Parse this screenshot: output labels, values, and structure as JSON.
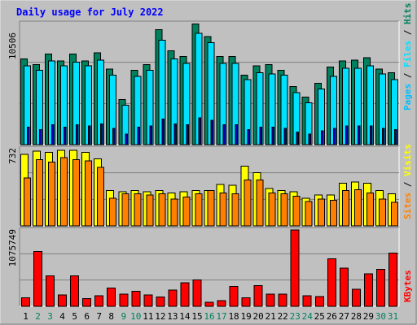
{
  "colors": {
    "background": "#c0c0c0",
    "frame": "#b0b0b0",
    "title": "#0000ff",
    "hits": "#00805c",
    "files": "#00e0ff",
    "pages": "#00c0ff",
    "visits": "#ffff00",
    "sites": "#ff8000",
    "kbytes": "#ff0000",
    "weekend_label": "#00805c",
    "weekday_label": "#000000"
  },
  "chart_data": [
    {
      "type": "bar",
      "title": "Daily usage for July 2022",
      "panel": "top",
      "ymax_label": "10506",
      "ylim": [
        0,
        10506
      ],
      "legend": [
        "Pages",
        "Files",
        "Hits"
      ],
      "categories": [
        "1",
        "2",
        "3",
        "4",
        "5",
        "6",
        "7",
        "8",
        "9",
        "10",
        "11",
        "12",
        "13",
        "14",
        "15",
        "16",
        "17",
        "18",
        "19",
        "20",
        "21",
        "22",
        "23",
        "24",
        "25",
        "26",
        "27",
        "28",
        "29",
        "30",
        "31"
      ],
      "series": [
        {
          "name": "Hits",
          "values": [
            7400,
            6900,
            7800,
            7200,
            7800,
            7200,
            7900,
            6500,
            3900,
            6400,
            6900,
            9900,
            8100,
            7600,
            10400,
            9300,
            7600,
            7600,
            6000,
            6800,
            6900,
            6400,
            5000,
            4100,
            5300,
            6700,
            7200,
            7300,
            7500,
            6500,
            6200
          ]
        },
        {
          "name": "Files",
          "values": [
            6800,
            6400,
            7200,
            6800,
            7100,
            6800,
            7300,
            6000,
            3400,
            5900,
            6400,
            9000,
            7400,
            7000,
            9600,
            8800,
            7000,
            7000,
            5600,
            6200,
            6100,
            6000,
            4500,
            3600,
            4800,
            5900,
            6600,
            6600,
            6800,
            6100,
            5600
          ]
        },
        {
          "name": "Pages",
          "values": [
            1500,
            1300,
            1700,
            1500,
            1700,
            1600,
            1800,
            1400,
            900,
            1500,
            1600,
            2200,
            1800,
            1700,
            2300,
            2100,
            1700,
            1700,
            1300,
            1500,
            1500,
            1400,
            1100,
            900,
            1200,
            1400,
            1600,
            1600,
            1600,
            1400,
            1300
          ]
        }
      ]
    },
    {
      "type": "bar",
      "panel": "middle",
      "ymax_label": "732",
      "ylim": [
        0,
        732
      ],
      "legend": [
        "Sites",
        "Visits"
      ],
      "series": [
        {
          "name": "Visits",
          "values": [
            670,
            700,
            690,
            710,
            710,
            690,
            630,
            330,
            320,
            330,
            320,
            330,
            310,
            320,
            330,
            330,
            390,
            380,
            560,
            500,
            350,
            330,
            320,
            260,
            290,
            290,
            400,
            410,
            400,
            330,
            300
          ]
        },
        {
          "name": "Sites",
          "values": [
            450,
            620,
            600,
            640,
            620,
            610,
            550,
            260,
            300,
            300,
            290,
            300,
            250,
            270,
            300,
            330,
            310,
            300,
            430,
            430,
            310,
            300,
            280,
            230,
            250,
            240,
            330,
            340,
            310,
            250,
            220
          ]
        }
      ]
    },
    {
      "type": "bar",
      "panel": "bottom",
      "ymax_label": "1075749",
      "ylim": [
        0,
        1075749
      ],
      "legend": [
        "KBytes"
      ],
      "series": [
        {
          "name": "KBytes",
          "values": [
            120000,
            770000,
            430000,
            160000,
            430000,
            110000,
            150000,
            260000,
            170000,
            210000,
            160000,
            130000,
            230000,
            330000,
            370000,
            60000,
            80000,
            280000,
            120000,
            290000,
            170000,
            170000,
            1075749,
            150000,
            140000,
            670000,
            540000,
            240000,
            460000,
            520000,
            750000
          ]
        }
      ]
    }
  ]
}
